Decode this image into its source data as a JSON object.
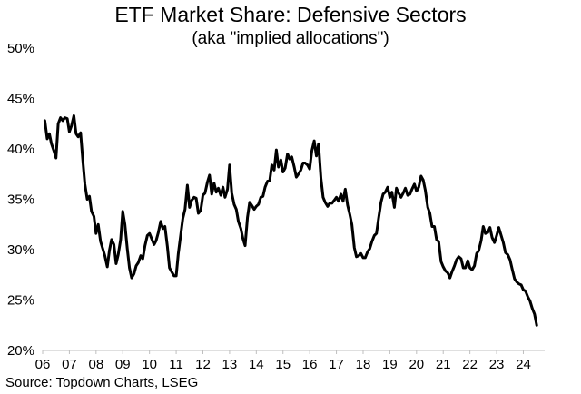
{
  "chart_data": {
    "type": "line",
    "title": "ETF Market Share: Defensive Sectors",
    "subtitle": "(aka \"implied allocations\")",
    "source": "Source: Topdown Charts, LSEG",
    "xlabel": "",
    "ylabel": "",
    "xlim": [
      2006.0,
      2024.8
    ],
    "ylim": [
      20,
      50
    ],
    "y_ticks": [
      20,
      25,
      30,
      35,
      40,
      45,
      50
    ],
    "y_tick_labels": [
      "20%",
      "25%",
      "30%",
      "35%",
      "40%",
      "45%",
      "50%"
    ],
    "x_ticks": [
      2006,
      2007,
      2008,
      2009,
      2010,
      2011,
      2012,
      2013,
      2014,
      2015,
      2016,
      2017,
      2018,
      2019,
      2020,
      2021,
      2022,
      2023,
      2024
    ],
    "x_tick_labels": [
      "06",
      "07",
      "08",
      "09",
      "10",
      "11",
      "12",
      "13",
      "14",
      "15",
      "16",
      "17",
      "18",
      "19",
      "20",
      "21",
      "22",
      "23",
      "24"
    ],
    "grid": false,
    "legend": "none",
    "series": [
      {
        "name": "ETF Market Share: Defensive Sectors",
        "color": "#000000",
        "x": [
          2006.08,
          2006.17,
          2006.25,
          2006.33,
          2006.42,
          2006.5,
          2006.58,
          2006.67,
          2006.75,
          2006.83,
          2006.92,
          2007.0,
          2007.08,
          2007.17,
          2007.25,
          2007.33,
          2007.42,
          2007.5,
          2007.58,
          2007.67,
          2007.75,
          2007.83,
          2007.92,
          2008.0,
          2008.08,
          2008.17,
          2008.25,
          2008.33,
          2008.42,
          2008.5,
          2008.58,
          2008.67,
          2008.75,
          2008.83,
          2008.92,
          2009.0,
          2009.08,
          2009.17,
          2009.25,
          2009.33,
          2009.42,
          2009.5,
          2009.58,
          2009.67,
          2009.75,
          2009.83,
          2009.92,
          2010.0,
          2010.08,
          2010.17,
          2010.25,
          2010.33,
          2010.42,
          2010.5,
          2010.58,
          2010.67,
          2010.75,
          2010.83,
          2010.92,
          2011.0,
          2011.08,
          2011.17,
          2011.25,
          2011.33,
          2011.42,
          2011.5,
          2011.58,
          2011.67,
          2011.75,
          2011.83,
          2011.92,
          2012.0,
          2012.08,
          2012.17,
          2012.25,
          2012.33,
          2012.42,
          2012.5,
          2012.58,
          2012.67,
          2012.75,
          2012.83,
          2012.92,
          2013.0,
          2013.08,
          2013.17,
          2013.25,
          2013.33,
          2013.42,
          2013.5,
          2013.58,
          2013.67,
          2013.75,
          2013.83,
          2013.92,
          2014.0,
          2014.08,
          2014.17,
          2014.25,
          2014.33,
          2014.42,
          2014.5,
          2014.58,
          2014.67,
          2014.75,
          2014.83,
          2014.92,
          2015.0,
          2015.08,
          2015.17,
          2015.25,
          2015.33,
          2015.42,
          2015.5,
          2015.58,
          2015.67,
          2015.75,
          2015.83,
          2015.92,
          2016.0,
          2016.08,
          2016.17,
          2016.25,
          2016.33,
          2016.42,
          2016.5,
          2016.58,
          2016.67,
          2016.75,
          2016.83,
          2016.92,
          2017.0,
          2017.08,
          2017.17,
          2017.25,
          2017.33,
          2017.42,
          2017.5,
          2017.58,
          2017.67,
          2017.75,
          2017.83,
          2017.92,
          2018.0,
          2018.08,
          2018.17,
          2018.25,
          2018.33,
          2018.42,
          2018.5,
          2018.58,
          2018.67,
          2018.75,
          2018.83,
          2018.92,
          2019.0,
          2019.08,
          2019.17,
          2019.25,
          2019.33,
          2019.42,
          2019.5,
          2019.58,
          2019.67,
          2019.75,
          2019.83,
          2019.92,
          2020.0,
          2020.08,
          2020.17,
          2020.25,
          2020.33,
          2020.42,
          2020.5,
          2020.58,
          2020.67,
          2020.75,
          2020.83,
          2020.92,
          2021.0,
          2021.08,
          2021.17,
          2021.25,
          2021.33,
          2021.42,
          2021.5,
          2021.58,
          2021.67,
          2021.75,
          2021.83,
          2021.92,
          2022.0,
          2022.08,
          2022.17,
          2022.25,
          2022.33,
          2022.42,
          2022.5,
          2022.58,
          2022.67,
          2022.75,
          2022.83,
          2022.92,
          2023.0,
          2023.08,
          2023.17,
          2023.25,
          2023.33,
          2023.42,
          2023.5,
          2023.58,
          2023.67,
          2023.75,
          2023.83,
          2023.92,
          2024.0,
          2024.08,
          2024.17,
          2024.25,
          2024.33,
          2024.42,
          2024.5
        ],
        "values": [
          42.8,
          41.0,
          41.5,
          40.5,
          39.8,
          39.1,
          42.5,
          43.1,
          42.8,
          43.1,
          43.0,
          41.7,
          42.3,
          43.3,
          41.5,
          41.2,
          41.6,
          39.0,
          36.5,
          35.0,
          35.3,
          33.8,
          33.3,
          31.6,
          32.5,
          30.8,
          30.1,
          29.4,
          28.3,
          29.9,
          31.0,
          30.5,
          28.6,
          29.5,
          31.0,
          33.8,
          32.5,
          30.1,
          28.2,
          27.2,
          27.6,
          28.4,
          28.7,
          29.4,
          29.1,
          30.4,
          31.4,
          31.6,
          31.1,
          30.5,
          30.9,
          31.7,
          32.8,
          32.1,
          32.3,
          30.3,
          28.2,
          27.8,
          27.4,
          27.4,
          29.6,
          31.5,
          33.1,
          34.0,
          36.4,
          34.2,
          34.9,
          35.2,
          35.1,
          33.6,
          33.9,
          35.4,
          35.6,
          36.7,
          37.4,
          35.5,
          36.6,
          35.7,
          36.1,
          35.4,
          36.2,
          35.2,
          36.0,
          38.4,
          35.6,
          34.5,
          34.0,
          32.8,
          32.1,
          31.1,
          30.4,
          33.2,
          34.7,
          34.4,
          34.0,
          34.3,
          34.5,
          35.2,
          35.3,
          36.2,
          36.8,
          36.8,
          38.4,
          37.9,
          39.9,
          38.2,
          38.9,
          37.7,
          38.1,
          39.5,
          39.0,
          39.2,
          38.2,
          37.2,
          37.5,
          37.9,
          38.6,
          38.6,
          38.4,
          38.0,
          39.8,
          40.8,
          39.3,
          40.5,
          37.1,
          35.2,
          34.7,
          34.3,
          34.6,
          34.6,
          34.9,
          35.2,
          34.8,
          35.5,
          34.8,
          36.0,
          34.4,
          33.5,
          32.5,
          30.2,
          29.3,
          29.4,
          29.6,
          29.2,
          29.2,
          29.8,
          30.1,
          30.8,
          31.4,
          31.6,
          33.1,
          34.7,
          35.5,
          35.7,
          36.2,
          35.2,
          35.7,
          34.2,
          36.1,
          35.6,
          35.2,
          35.6,
          36.1,
          35.4,
          35.5,
          36.0,
          36.5,
          35.8,
          36.2,
          37.3,
          36.9,
          35.9,
          34.2,
          33.6,
          32.3,
          32.3,
          31.0,
          30.8,
          28.8,
          28.3,
          27.9,
          27.7,
          27.2,
          27.8,
          28.4,
          29.0,
          29.3,
          29.1,
          28.2,
          28.2,
          28.9,
          28.2,
          28.0,
          28.4,
          29.6,
          29.9,
          30.9,
          32.3,
          31.6,
          31.7,
          32.2,
          31.2,
          30.7,
          31.4,
          32.2,
          31.4,
          30.7,
          29.7,
          29.5,
          29.0,
          28.1,
          27.1,
          26.8,
          26.6,
          26.5,
          26.0,
          25.9,
          25.3,
          24.9,
          24.2,
          23.6,
          22.5
        ]
      }
    ]
  }
}
